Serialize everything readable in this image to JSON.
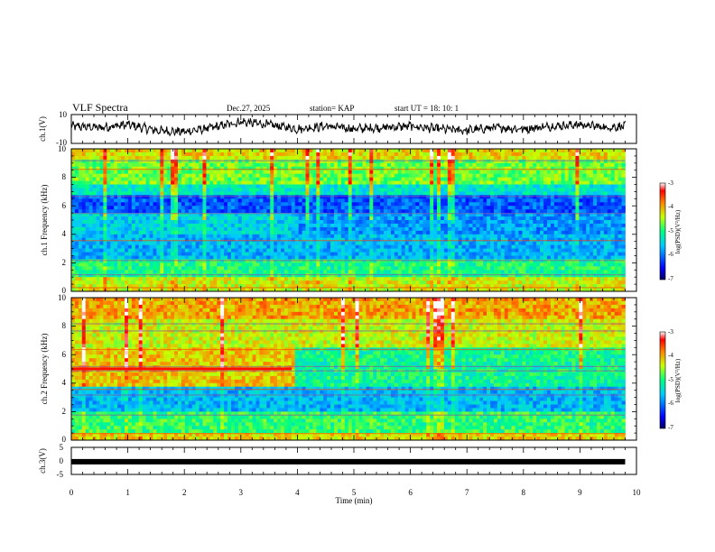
{
  "header": {
    "title": "VLF Spectra",
    "date": "Dec.27, 2025",
    "station": "station= KAP",
    "start": "start  UT =   18: 10: 1"
  },
  "colors": {
    "frame": "#000000",
    "waveform": "#000000"
  },
  "chart_data": [
    {
      "id": "ch1-waveform",
      "type": "line",
      "ylabel": "ch.1(V)",
      "ylim": [
        -10,
        10
      ],
      "yticks": [
        "10",
        "-10"
      ],
      "x": [
        0.0,
        0.5,
        1.0,
        1.5,
        2.0,
        2.5,
        3.0,
        3.5,
        4.0,
        4.5,
        5.0,
        5.5,
        6.0,
        6.5,
        7.0,
        7.5,
        8.0,
        8.5,
        9.0,
        9.5,
        9.8
      ],
      "values": [
        2,
        1,
        3,
        -1,
        -2,
        1,
        5,
        3,
        0,
        2,
        0,
        1,
        2,
        0,
        -1,
        1,
        0,
        2,
        3,
        1,
        2
      ]
    },
    {
      "id": "ch1-spectrogram",
      "type": "heatmap",
      "ylabel": "ch.1 Frequency (kHz)",
      "ylim": [
        0,
        10
      ],
      "yticks": [
        "0",
        "2",
        "4",
        "6",
        "8",
        "10"
      ],
      "colorbar": {
        "label": "log(PSD)(V²/Hz)",
        "range": [
          -7,
          -3
        ],
        "ticks": [
          "-3",
          "-4",
          "-5",
          "-6",
          "-7"
        ]
      }
    },
    {
      "id": "ch2-spectrogram",
      "type": "heatmap",
      "ylabel": "ch.2 Frequency (kHz)",
      "ylim": [
        0,
        10
      ],
      "yticks": [
        "0",
        "2",
        "4",
        "6",
        "8",
        "10"
      ],
      "colorbar": {
        "label": "log(PSD)(V²/Hz)",
        "range": [
          -7,
          -3
        ],
        "ticks": [
          "-3",
          "-4",
          "-5",
          "-6",
          "-7"
        ]
      }
    },
    {
      "id": "ch3-waveform",
      "type": "line",
      "ylabel": "ch.3(V)",
      "ylim": [
        -5,
        5
      ],
      "yticks": [
        "5",
        "0",
        "-5"
      ],
      "x": [
        0,
        9.8
      ],
      "values": [
        -0.3,
        -0.3
      ],
      "xlabel": "Time  (min)",
      "xlim": [
        0,
        10
      ],
      "xticks": [
        "0",
        "1",
        "2",
        "3",
        "4",
        "5",
        "6",
        "7",
        "8",
        "9",
        "10"
      ]
    }
  ]
}
